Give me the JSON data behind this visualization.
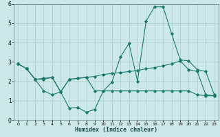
{
  "xlabel": "Humidex (Indice chaleur)",
  "bg_color": "#cce8e8",
  "grid_color": "#aacccc",
  "line_color": "#1a7a6e",
  "xlim": [
    -0.5,
    23.5
  ],
  "ylim": [
    0,
    6
  ],
  "xticks": [
    0,
    1,
    2,
    3,
    4,
    5,
    6,
    7,
    8,
    9,
    10,
    11,
    12,
    13,
    14,
    15,
    16,
    17,
    18,
    19,
    20,
    21,
    22,
    23
  ],
  "yticks": [
    0,
    1,
    2,
    3,
    4,
    5,
    6
  ],
  "series1_x": [
    0,
    1,
    2,
    3,
    4,
    5,
    6,
    7,
    8,
    9,
    10,
    11,
    12,
    13,
    14,
    15,
    16,
    17,
    18,
    19,
    20,
    21,
    22,
    23
  ],
  "series1_y": [
    2.9,
    2.65,
    2.1,
    2.1,
    2.2,
    1.45,
    0.6,
    0.65,
    0.4,
    0.55,
    1.5,
    1.95,
    3.25,
    3.95,
    2.0,
    5.1,
    5.85,
    5.85,
    4.45,
    3.1,
    3.05,
    2.6,
    2.5,
    1.3
  ],
  "series2_x": [
    0,
    1,
    2,
    3,
    4,
    5,
    6,
    7,
    8,
    9,
    10,
    11,
    12,
    13,
    14,
    15,
    16,
    17,
    18,
    19,
    20,
    21,
    22,
    23
  ],
  "series2_y": [
    2.9,
    2.65,
    2.1,
    2.15,
    2.2,
    1.45,
    2.1,
    2.15,
    2.2,
    2.25,
    2.35,
    2.4,
    2.45,
    2.5,
    2.55,
    2.65,
    2.7,
    2.8,
    2.9,
    3.05,
    2.6,
    2.5,
    1.3,
    1.25
  ],
  "series3_x": [
    0,
    1,
    2,
    3,
    4,
    5,
    6,
    7,
    8,
    9,
    10,
    11,
    12,
    13,
    14,
    15,
    16,
    17,
    18,
    19,
    20,
    21,
    22,
    23
  ],
  "series3_y": [
    2.9,
    2.65,
    2.1,
    1.5,
    1.3,
    1.45,
    2.1,
    2.15,
    2.2,
    1.5,
    1.5,
    1.5,
    1.5,
    1.5,
    1.5,
    1.5,
    1.5,
    1.5,
    1.5,
    1.5,
    1.5,
    1.3,
    1.25,
    1.25
  ]
}
